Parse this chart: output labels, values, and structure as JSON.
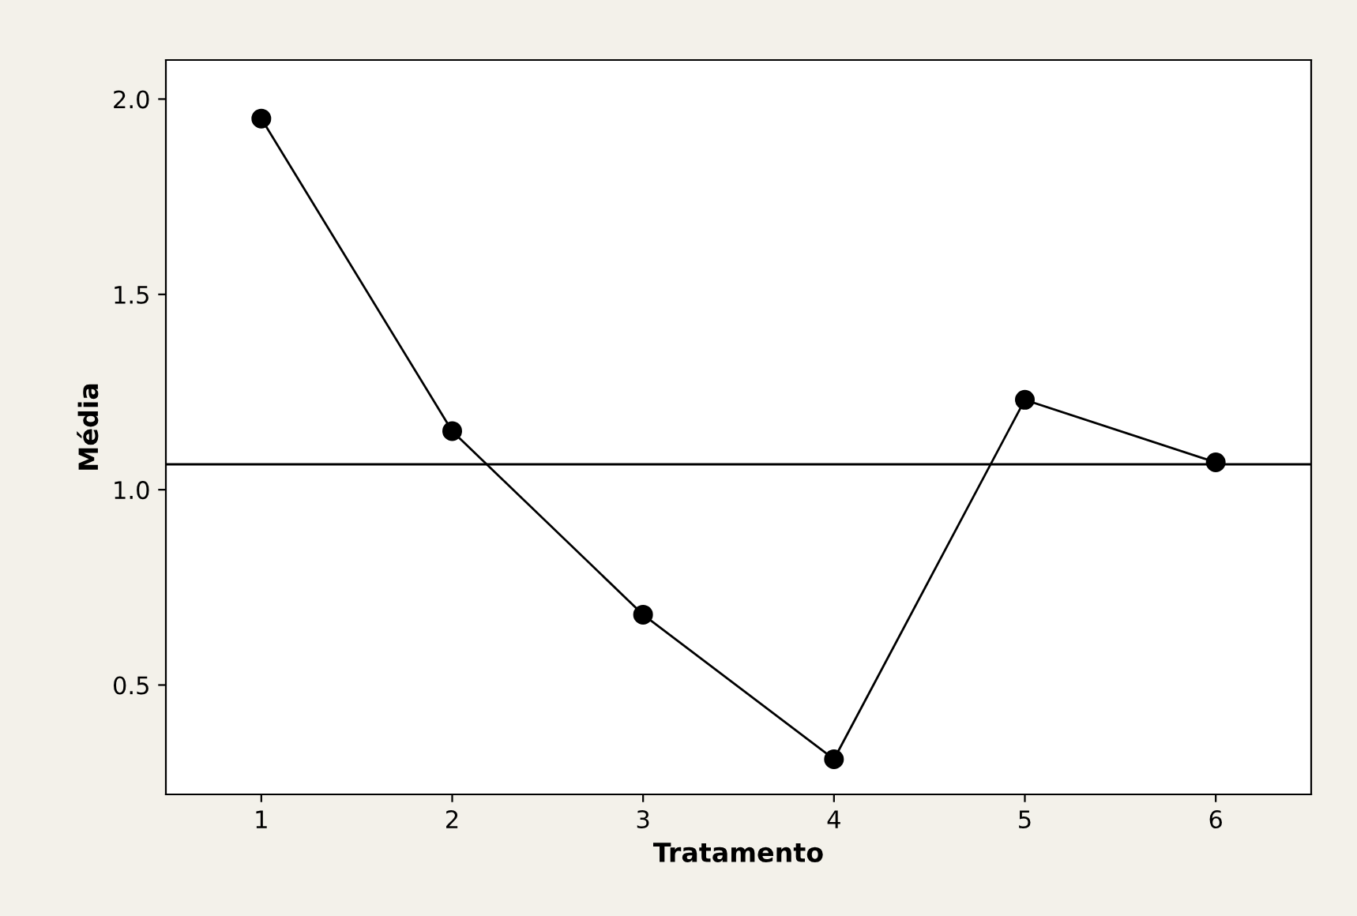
{
  "chart_data": {
    "type": "line",
    "xlabel": "Tratamento",
    "ylabel": "Média",
    "x": [
      1,
      2,
      3,
      4,
      5,
      6
    ],
    "series": [
      {
        "color": "#000000",
        "values": [
          1.95,
          1.15,
          0.68,
          0.31,
          1.23,
          1.07
        ]
      }
    ],
    "xlim": [
      0.5,
      6.5
    ],
    "xticks": [
      1,
      2,
      3,
      4,
      5,
      6
    ],
    "ylim": [
      0.22,
      2.1
    ],
    "yticks": [
      0.5,
      {
        "value": 1,
        "label": "1.0"
      },
      1.5,
      {
        "value": 2,
        "label": "2.0"
      }
    ],
    "ref_lines": [
      {
        "axis": "y",
        "value": 1.065,
        "color": "#000000"
      }
    ],
    "marker": "circle",
    "line_style": "solid",
    "grid": false,
    "legend": false
  }
}
